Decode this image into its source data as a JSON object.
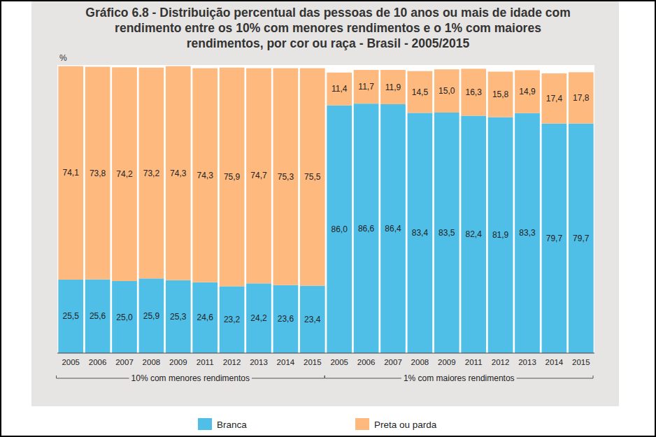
{
  "chart_data": {
    "type": "bar",
    "title": "Gráfico 6.8 - Distribuição percentual das pessoas de 10 anos ou mais de idade com rendimento entre os 10%  com menores rendimentos e o 1% com maiores rendimentos, por cor ou raça - Brasil - 2005/2015",
    "y_label": "%",
    "categories": [
      "2005",
      "2006",
      "2007",
      "2008",
      "2009",
      "2011",
      "2012",
      "2013",
      "2014",
      "2015",
      "2005",
      "2006",
      "2007",
      "2008",
      "2009",
      "2011",
      "2012",
      "2013",
      "2014",
      "2015"
    ],
    "annotations": [
      "10% com menores rendimentos",
      "1% com maiores rendimentos"
    ],
    "series": [
      {
        "name": "Branca",
        "color": "#4fbfe8",
        "values": [
          25.5,
          25.6,
          25.0,
          25.9,
          25.3,
          24.6,
          23.2,
          24.2,
          23.6,
          23.4,
          86.0,
          86.6,
          86.4,
          83.4,
          83.5,
          82.4,
          81.9,
          83.3,
          79.7,
          79.7
        ],
        "value_labels": [
          "25,5",
          "25,6",
          "25,0",
          "25,9",
          "25,3",
          "24,6",
          "23,2",
          "24,2",
          "23,6",
          "23,4",
          "86,0",
          "86,6",
          "86,4",
          "83,4",
          "83,5",
          "82,4",
          "81,9",
          "83,3",
          "79,7",
          "79,7"
        ]
      },
      {
        "name": "Preta ou parda",
        "color": "#fdb97e",
        "values": [
          74.1,
          73.8,
          74.2,
          73.2,
          74.3,
          74.3,
          75.9,
          74.7,
          75.3,
          75.5,
          11.4,
          11.7,
          11.9,
          14.5,
          15.0,
          16.3,
          15.8,
          14.9,
          17.4,
          17.8
        ],
        "value_labels": [
          "74,1",
          "73,8",
          "74,2",
          "73,2",
          "74,3",
          "74,3",
          "75,9",
          "74,7",
          "75,3",
          "75,5",
          "11,4",
          "11,7",
          "11,9",
          "14,5",
          "15,0",
          "16,3",
          "15,8",
          "14,9",
          "17,4",
          "17,8"
        ]
      }
    ],
    "ylim": [
      0,
      100
    ],
    "stacked": true,
    "data_labels": true,
    "tick_labels": "x",
    "legend": "bottom"
  }
}
